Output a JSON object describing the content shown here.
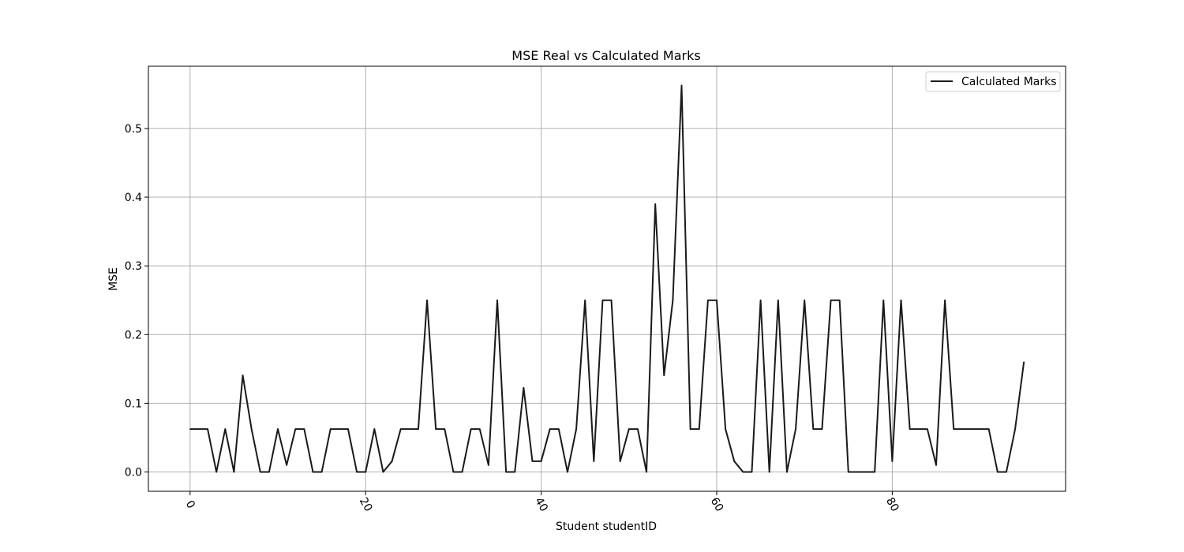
{
  "chart_data": {
    "type": "line",
    "title": "MSE Real vs Calculated Marks",
    "xlabel": "Student studentID",
    "ylabel": "MSE",
    "xlim": [
      -4.75,
      99.75
    ],
    "ylim": [
      -0.0281,
      0.5906
    ],
    "x_ticks": [
      0,
      20,
      40,
      60,
      80
    ],
    "x_tick_labels": [
      "0",
      "20",
      "40",
      "60",
      "80"
    ],
    "y_ticks": [
      0.0,
      0.1,
      0.2,
      0.3,
      0.4,
      0.5
    ],
    "y_tick_labels": [
      "0.0",
      "0.1",
      "0.2",
      "0.3",
      "0.4",
      "0.5"
    ],
    "x_tick_rotation": "rotated clockwise",
    "grid": true,
    "legend": {
      "placement": "top-right"
    },
    "series": [
      {
        "name": "Calculated Marks",
        "color": "#1a1a1a",
        "x": [
          0,
          1,
          2,
          3,
          4,
          5,
          6,
          7,
          8,
          9,
          10,
          11,
          12,
          13,
          14,
          15,
          16,
          17,
          18,
          19,
          20,
          21,
          22,
          23,
          24,
          25,
          26,
          27,
          28,
          29,
          30,
          31,
          32,
          33,
          34,
          35,
          36,
          37,
          38,
          39,
          40,
          41,
          42,
          43,
          44,
          45,
          46,
          47,
          48,
          49,
          50,
          51,
          52,
          53,
          54,
          55,
          56,
          57,
          58,
          59,
          60,
          61,
          62,
          63,
          64,
          65,
          66,
          67,
          68,
          69,
          70,
          71,
          72,
          73,
          74,
          75,
          76,
          77,
          78,
          79,
          80,
          81,
          82,
          83,
          84,
          85,
          86,
          87,
          88,
          89,
          90,
          91,
          92,
          93,
          94,
          95
        ],
        "values": [
          0.0625,
          0.0625,
          0.0625,
          0.0,
          0.0625,
          0.0,
          0.1406,
          0.0625,
          0.0,
          0.0,
          0.0625,
          0.01,
          0.0625,
          0.0625,
          0.0,
          0.0,
          0.0625,
          0.0625,
          0.0625,
          0.0,
          0.0,
          0.0625,
          0.0,
          0.0156,
          0.0625,
          0.0625,
          0.0625,
          0.25,
          0.0625,
          0.0625,
          0.0,
          0.0,
          0.0625,
          0.0625,
          0.01,
          0.25,
          0.0,
          0.0,
          0.1225,
          0.0156,
          0.0156,
          0.0625,
          0.0625,
          0.0,
          0.0625,
          0.25,
          0.0156,
          0.25,
          0.25,
          0.0156,
          0.0625,
          0.0625,
          0.0,
          0.39,
          0.1406,
          0.25,
          0.5625,
          0.0625,
          0.0625,
          0.25,
          0.25,
          0.0625,
          0.0156,
          0.0,
          0.0,
          0.25,
          0.0,
          0.25,
          0.0,
          0.0625,
          0.25,
          0.0625,
          0.0625,
          0.25,
          0.25,
          0.0,
          0.0,
          0.0,
          0.0,
          0.25,
          0.0156,
          0.25,
          0.0625,
          0.0625,
          0.0625,
          0.01,
          0.25,
          0.0625,
          0.0625,
          0.0625,
          0.0625,
          0.0625,
          0.0,
          0.0,
          0.0625,
          0.16
        ]
      }
    ]
  }
}
